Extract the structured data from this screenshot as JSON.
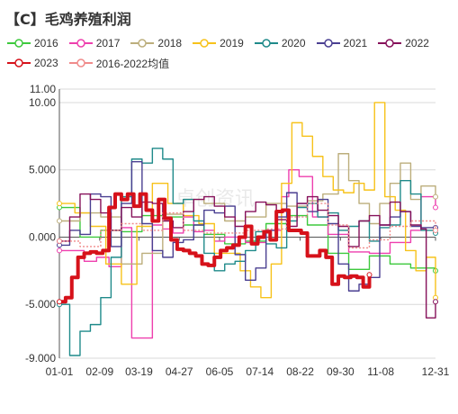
{
  "chart_data": {
    "type": "line",
    "title": "【C】毛鸡养殖利润",
    "xlabel": "",
    "ylabel": "",
    "ylim": [
      -9000,
      11000
    ],
    "yticks": [
      -9000,
      -5000,
      0,
      5000,
      10000,
      11000
    ],
    "ytick_labels": [
      "-9.000",
      "-5.000",
      "0.000",
      "5.000",
      "10.00",
      "11.00"
    ],
    "xticks": [
      0,
      39,
      77,
      116,
      155,
      194,
      233,
      272,
      311,
      364
    ],
    "xtick_labels": [
      "01-01",
      "02-09",
      "03-19",
      "04-27",
      "06-05",
      "07-14",
      "08-22",
      "09-30",
      "11-08",
      "12-31"
    ],
    "legend_position": "top",
    "grid": "horizontal",
    "series": [
      {
        "name": "2016",
        "color": "#3dc93d",
        "x": [
          0,
          20,
          40,
          60,
          80,
          100,
          120,
          140,
          160,
          180,
          200,
          220,
          240,
          260,
          280,
          300,
          320,
          340,
          364
        ],
        "y": [
          2200,
          0,
          500,
          400,
          1600,
          1500,
          900,
          200,
          -500,
          -300,
          1000,
          1600,
          900,
          -1200,
          -2400,
          -1400,
          -2000,
          -2300,
          -2500
        ]
      },
      {
        "name": "2017",
        "color": "#ee3fae",
        "x": [
          0,
          12,
          24,
          36,
          48,
          60,
          70,
          80,
          90,
          100,
          110,
          120,
          130,
          140,
          150,
          160,
          180,
          200,
          215,
          222,
          232,
          245,
          260,
          280,
          300,
          320,
          340,
          350,
          364
        ],
        "y": [
          -1000,
          -1000,
          -1800,
          -1500,
          -2200,
          700,
          -7500,
          -7500,
          900,
          600,
          300,
          1500,
          400,
          500,
          -300,
          0,
          -400,
          500,
          3000,
          5000,
          4500,
          1500,
          200,
          -1100,
          -1200,
          -400,
          500,
          3000,
          2200
        ]
      },
      {
        "name": "2018",
        "color": "#bcae7c",
        "x": [
          0,
          20,
          40,
          60,
          80,
          100,
          120,
          140,
          160,
          180,
          200,
          220,
          240,
          255,
          270,
          280,
          290,
          300,
          310,
          320,
          330,
          340,
          350,
          364
        ],
        "y": [
          1200,
          1800,
          1500,
          -2000,
          -1200,
          1700,
          2800,
          2500,
          1200,
          1500,
          2500,
          2300,
          2700,
          3200,
          6200,
          4200,
          2500,
          1000,
          2500,
          4000,
          5500,
          2800,
          3800,
          3000
        ]
      },
      {
        "name": "2019",
        "color": "#f7c21a",
        "x": [
          0,
          15,
          30,
          45,
          60,
          75,
          90,
          105,
          120,
          135,
          150,
          165,
          175,
          185,
          195,
          205,
          215,
          225,
          235,
          245,
          255,
          265,
          275,
          285,
          295,
          305,
          315,
          325,
          335,
          345,
          355,
          364
        ],
        "y": [
          2500,
          1800,
          800,
          -2000,
          -3500,
          800,
          4000,
          2500,
          1600,
          1000,
          -1200,
          -1200,
          -2500,
          -3700,
          -4500,
          -2000,
          4000,
          8500,
          7500,
          6000,
          4500,
          3500,
          3300,
          4000,
          3500,
          10000,
          3000,
          2000,
          -1000,
          -2500,
          -1500,
          -4500
        ]
      },
      {
        "name": "2020",
        "color": "#1f8a8a",
        "x": [
          0,
          10,
          20,
          30,
          40,
          50,
          60,
          70,
          80,
          90,
          100,
          110,
          120,
          130,
          140,
          150,
          160,
          170,
          180,
          190,
          200,
          210,
          220,
          230,
          240,
          250,
          260,
          270,
          280,
          290,
          300,
          310,
          320,
          330,
          340,
          350,
          364
        ],
        "y": [
          -5000,
          -8800,
          -7000,
          -6500,
          -4500,
          -1500,
          3000,
          5800,
          5500,
          6600,
          5800,
          2500,
          2800,
          1200,
          -1200,
          -2500,
          -2000,
          -1800,
          -1000,
          400,
          -500,
          -800,
          1200,
          2200,
          2500,
          1500,
          1800,
          500,
          800,
          1200,
          -300,
          700,
          900,
          4200,
          3200,
          500,
          300
        ]
      },
      {
        "name": "2021",
        "color": "#4a3f91",
        "x": [
          0,
          10,
          20,
          30,
          40,
          50,
          60,
          70,
          80,
          90,
          100,
          110,
          120,
          130,
          140,
          150,
          160,
          170,
          180,
          190,
          200,
          210,
          220,
          230,
          240,
          250,
          260,
          270,
          280,
          290,
          300,
          310,
          320,
          330,
          340,
          350,
          364
        ],
        "y": [
          -600,
          500,
          200,
          3200,
          3000,
          -700,
          2500,
          5600,
          1000,
          -1000,
          -1500,
          -400,
          -200,
          900,
          2000,
          1800,
          2300,
          -1300,
          -3200,
          -2300,
          500,
          1500,
          3300,
          2500,
          1900,
          2800,
          1000,
          -2000,
          -4000,
          -3500,
          -3000,
          900,
          1500,
          1900,
          800,
          700,
          700
        ]
      },
      {
        "name": "2022",
        "color": "#86115a",
        "x": [
          0,
          10,
          20,
          30,
          40,
          50,
          60,
          70,
          80,
          90,
          100,
          110,
          120,
          130,
          140,
          150,
          160,
          170,
          180,
          190,
          200,
          210,
          220,
          230,
          240,
          250,
          260,
          270,
          280,
          290,
          300,
          310,
          320,
          330,
          340,
          350,
          355,
          364
        ],
        "y": [
          -300,
          1500,
          3200,
          2800,
          1800,
          500,
          2200,
          1500,
          2600,
          2500,
          1200,
          700,
          1900,
          2800,
          3000,
          2300,
          1500,
          800,
          1900,
          2600,
          2400,
          1300,
          800,
          2500,
          3000,
          2000,
          1600,
          800,
          -700,
          1200,
          1600,
          900,
          2600,
          1900,
          900,
          600,
          -6000,
          -4800
        ]
      },
      {
        "name": "2023",
        "color": "#d6111a",
        "x": [
          0,
          6,
          12,
          18,
          24,
          30,
          36,
          42,
          48,
          54,
          60,
          66,
          72,
          78,
          84,
          90,
          96,
          102,
          108,
          114,
          120,
          126,
          132,
          138,
          144,
          150,
          156,
          162,
          168,
          174,
          180,
          186,
          192,
          198,
          204,
          210,
          216,
          222,
          228,
          234,
          240,
          246,
          252,
          258,
          264,
          270,
          276,
          282,
          288,
          294,
          300
        ],
        "y": [
          -4800,
          -4500,
          -3000,
          -1500,
          -1200,
          -1100,
          -1200,
          -1000,
          2200,
          3200,
          2800,
          3200,
          2300,
          3200,
          2000,
          1200,
          2800,
          1400,
          -200,
          -900,
          -1000,
          -1200,
          -1400,
          -2000,
          -2100,
          -1500,
          -1000,
          -800,
          -600,
          0,
          800,
          -500,
          0,
          400,
          -200,
          1900,
          2000,
          500,
          500,
          300,
          -1400,
          -1400,
          -1000,
          -1500,
          -3500,
          -2900,
          -3000,
          -2900,
          -3000,
          -3700,
          -2800
        ]
      },
      {
        "name": "2016-2022均值",
        "color": "#f08a8a",
        "x": [
          0,
          20,
          40,
          60,
          80,
          100,
          120,
          140,
          160,
          180,
          200,
          220,
          240,
          260,
          280,
          300,
          320,
          340,
          364
        ],
        "y": [
          -300,
          -700,
          500,
          1000,
          500,
          1800,
          500,
          300,
          300,
          500,
          600,
          1500,
          2500,
          900,
          -800,
          -200,
          800,
          1200,
          500
        ]
      }
    ]
  }
}
